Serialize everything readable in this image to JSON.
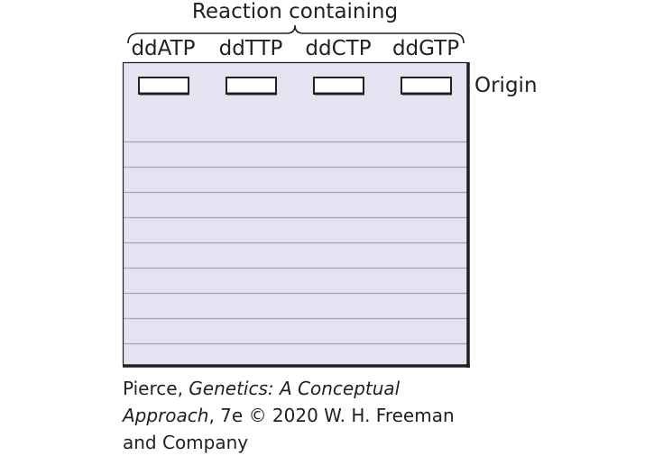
{
  "header": {
    "title": "Reaction containing"
  },
  "lanes": [
    {
      "label": "ddATP"
    },
    {
      "label": "ddTTP"
    },
    {
      "label": "ddCTP"
    },
    {
      "label": "ddGTP"
    }
  ],
  "gel": {
    "origin_label": "Origin",
    "fill_color": "#e6e2f2",
    "line_color": "#a7a4b6",
    "border_color": "#231f20"
  },
  "credit": {
    "line1_prefix": "Pierce, ",
    "line1_italic": "Genetics: A Conceptual",
    "line2_italic": "Approach",
    "line2_suffix": ", 7e © 2020 W. H. Freeman",
    "line3": "and Company"
  }
}
